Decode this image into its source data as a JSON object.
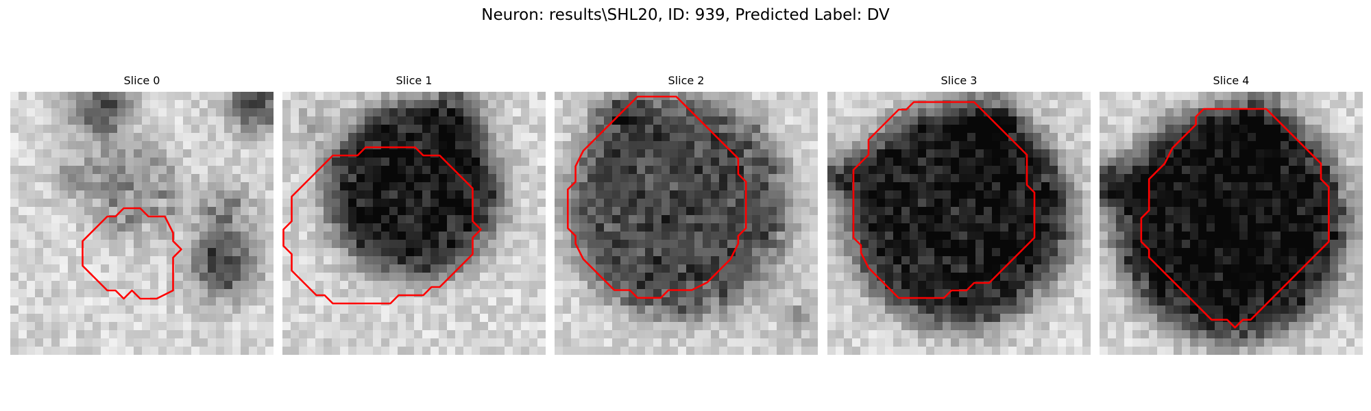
{
  "figure": {
    "title": "Neuron: results\\SHL20, ID: 939, Predicted Label: DV",
    "contour_color": "#ff0000",
    "colormap": "gray"
  },
  "slices": [
    {
      "label": "Slice 0"
    },
    {
      "label": "Slice 1"
    },
    {
      "label": "Slice 2"
    },
    {
      "label": "Slice 3"
    },
    {
      "label": "Slice 4"
    }
  ]
}
